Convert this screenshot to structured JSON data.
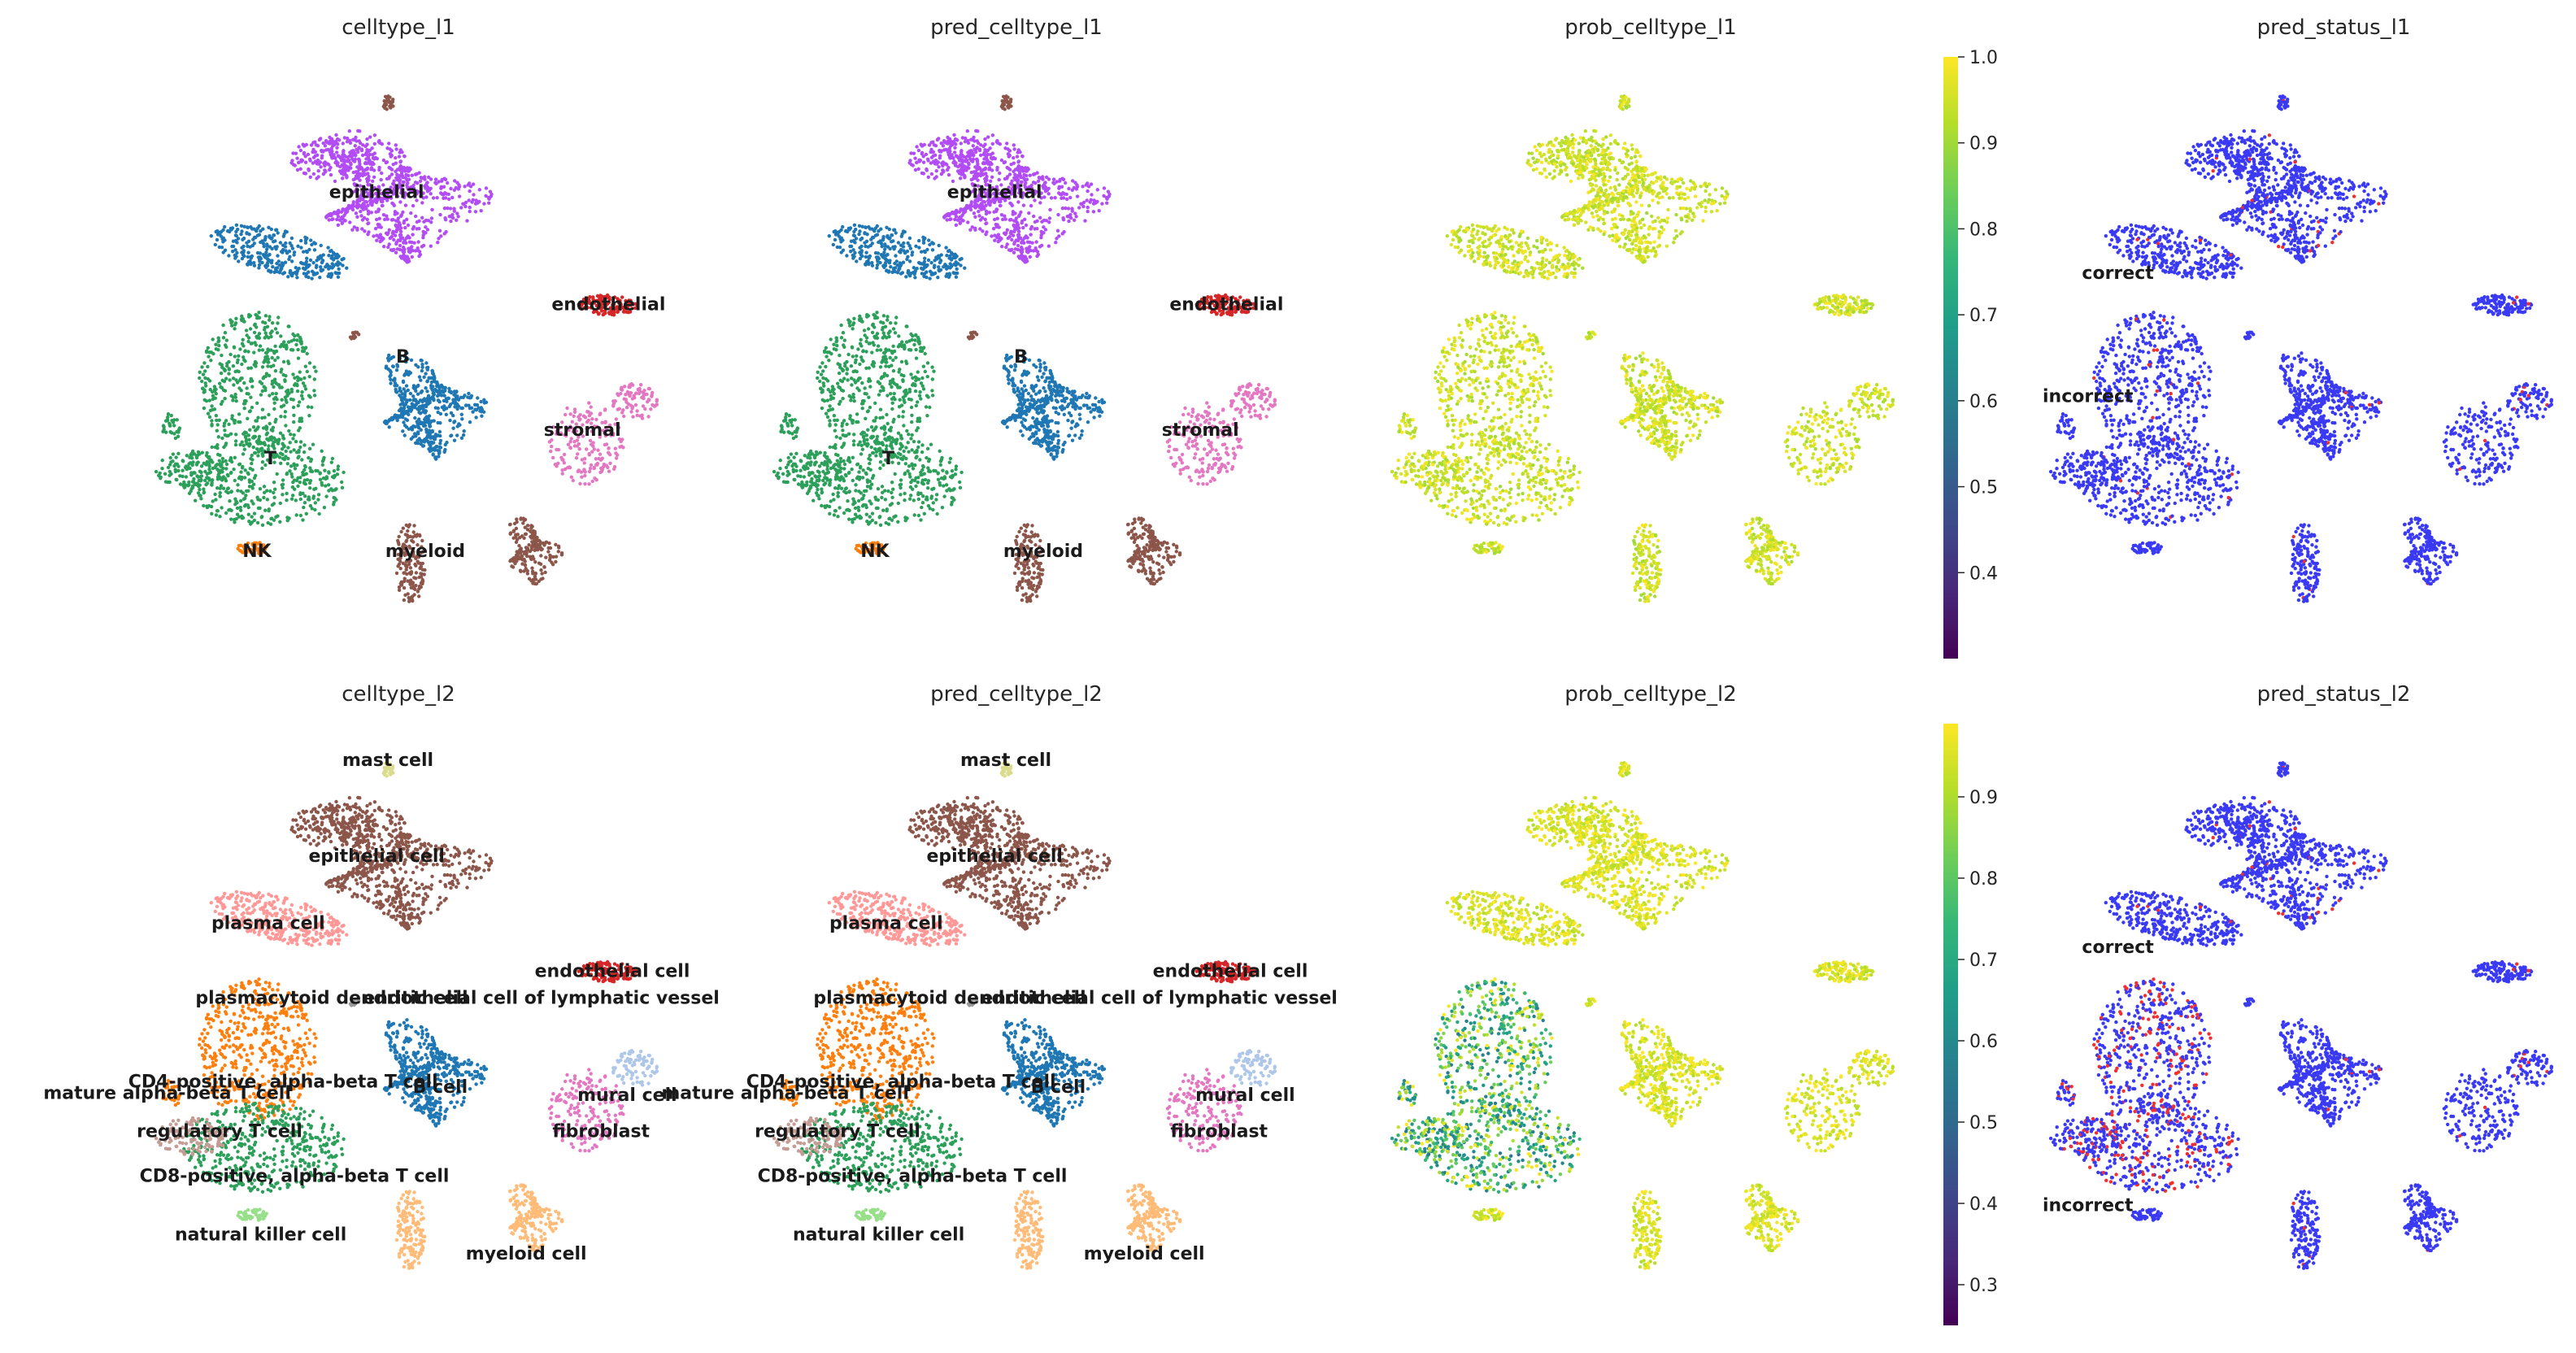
{
  "chart_data": [
    {
      "type": "scatter",
      "title": "celltype_l1",
      "legend": "on data",
      "labels": [
        "epithelial",
        "endothelial",
        "B",
        "stromal",
        "T",
        "NK",
        "myeloid"
      ],
      "colors": {
        "epithelial": "#b24cf5",
        "B": "#1f77b4",
        "T": "#2ca05a",
        "NK": "#ff7f0e",
        "myeloid": "#8c564b",
        "endothelial": "#d62728",
        "stromal": "#e377c2"
      }
    },
    {
      "type": "scatter",
      "title": "pred_celltype_l1",
      "legend": "on data",
      "labels": [
        "epithelial",
        "endothelial",
        "B",
        "stromal",
        "T",
        "NK",
        "myeloid"
      ],
      "colors": {
        "epithelial": "#b24cf5",
        "B": "#1f77b4",
        "T": "#2ca05a",
        "NK": "#ff7f0e",
        "myeloid": "#8c564b",
        "endothelial": "#d62728",
        "stromal": "#e377c2"
      }
    },
    {
      "type": "scatter",
      "title": "prob_celltype_l1",
      "colormap": "viridis",
      "colorbar": {
        "min": 0.3,
        "max": 1.0,
        "ticks": [
          "0.4",
          "0.5",
          "0.6",
          "0.7",
          "0.8",
          "0.9",
          "1.0"
        ]
      }
    },
    {
      "type": "scatter",
      "title": "pred_status_l1",
      "legend": "on data",
      "labels": [
        "correct",
        "incorrect"
      ],
      "colors": {
        "correct": "#3a3af5",
        "incorrect": "#f03030"
      }
    },
    {
      "type": "scatter",
      "title": "celltype_l2",
      "legend": "on data",
      "labels": [
        "mast cell",
        "epithelial cell",
        "plasma cell",
        "endothelial cell",
        "plasmacytoid dendritic cell",
        "endothelial cell of lymphatic vessel",
        "CD4-positive, alpha-beta T cell",
        "B cell",
        "mature alpha-beta T cell",
        "mural cell",
        "regulatory T cell",
        "fibroblast",
        "CD8-positive, alpha-beta T cell",
        "natural killer cell",
        "myeloid cell"
      ],
      "colors": {
        "epithelial cell": "#8c564b",
        "plasma cell": "#ff9896",
        "endothelial cell": "#d62728",
        "CD4-positive, alpha-beta T cell": "#ff7f0e",
        "B cell": "#1f77b4",
        "regulatory T cell": "#c49c94",
        "CD8-positive, alpha-beta T cell": "#2ca05a",
        "natural killer cell": "#98df8a",
        "myeloid cell": "#ffbb78",
        "mast cell": "#dbdb8d",
        "mural cell": "#aec7e8",
        "fibroblast": "#e377c2"
      }
    },
    {
      "type": "scatter",
      "title": "pred_celltype_l2",
      "legend": "on data",
      "labels": [
        "mast cell",
        "epithelial cell",
        "plasma cell",
        "endothelial cell",
        "plasmacytoid dendritic cell",
        "endothelial cell of lymphatic vessel",
        "CD4-positive, alpha-beta T cell",
        "B cell",
        "mature alpha-beta T cell",
        "mural cell",
        "regulatory T cell",
        "fibroblast",
        "CD8-positive, alpha-beta T cell",
        "natural killer cell",
        "myeloid cell"
      ],
      "colors": {
        "epithelial cell": "#8c564b",
        "plasma cell": "#ff9896",
        "endothelial cell": "#d62728",
        "CD4-positive, alpha-beta T cell": "#ff7f0e",
        "B cell": "#1f77b4",
        "regulatory T cell": "#c49c94",
        "CD8-positive, alpha-beta T cell": "#2ca05a",
        "natural killer cell": "#98df8a",
        "myeloid cell": "#ffbb78",
        "mast cell": "#dbdb8d",
        "mural cell": "#aec7e8",
        "fibroblast": "#e377c2"
      }
    },
    {
      "type": "scatter",
      "title": "prob_celltype_l2",
      "colormap": "viridis",
      "colorbar": {
        "min": 0.25,
        "max": 0.99,
        "ticks": [
          "0.3",
          "0.4",
          "0.5",
          "0.6",
          "0.7",
          "0.8",
          "0.9"
        ]
      }
    },
    {
      "type": "scatter",
      "title": "pred_status_l2",
      "legend": "on data",
      "labels": [
        "correct",
        "incorrect"
      ],
      "colors": {
        "correct": "#3a3af5",
        "incorrect": "#f03030"
      }
    }
  ]
}
